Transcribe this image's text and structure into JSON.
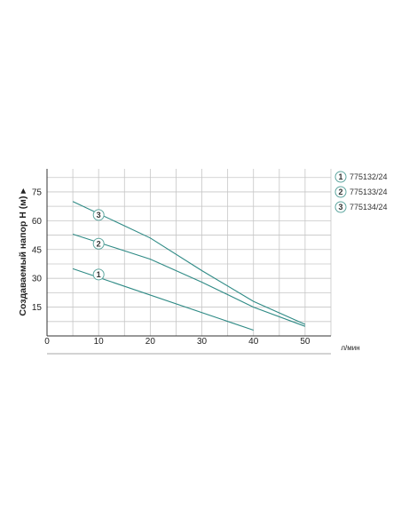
{
  "chart_data": {
    "type": "line",
    "title": "",
    "ylabel": "Создаваемый напор H (м) ▸",
    "xlabel": "л/мин",
    "xlim": [
      0,
      55
    ],
    "ylim": [
      0,
      87
    ],
    "x_ticks": [
      0,
      10,
      20,
      30,
      40,
      50
    ],
    "y_ticks": [
      15,
      30,
      45,
      60,
      75
    ],
    "x_gridlines": [
      0,
      5,
      10,
      15,
      20,
      25,
      30,
      35,
      40,
      45,
      50,
      55
    ],
    "y_gridlines": [
      0,
      7.5,
      15,
      22.5,
      30,
      37.5,
      45,
      52.5,
      60,
      67.5,
      75,
      82.5
    ],
    "grid": true,
    "legend_position": "right",
    "series": [
      {
        "marker": "1",
        "name": "775132/24",
        "x": [
          5,
          40
        ],
        "y": [
          35,
          3
        ],
        "marker_at": [
          10,
          32
        ]
      },
      {
        "marker": "2",
        "name": "775133/24",
        "x": [
          5,
          20,
          30,
          40,
          50
        ],
        "y": [
          53,
          40,
          28,
          15,
          5
        ],
        "marker_at": [
          10,
          48
        ]
      },
      {
        "marker": "3",
        "name": "775134/24",
        "x": [
          5,
          20,
          30,
          40,
          50
        ],
        "y": [
          70,
          51,
          34,
          18,
          6
        ],
        "marker_at": [
          10,
          63
        ]
      }
    ]
  },
  "colors": {
    "grid": "#c6c6c6",
    "axis": "#333333",
    "line": "#2e8a85",
    "marker_border": "#5fa7a0"
  }
}
